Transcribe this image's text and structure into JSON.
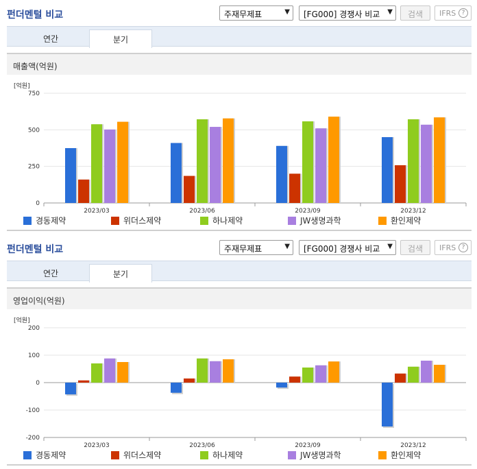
{
  "sections": [
    {
      "header": {
        "title": "펀더멘털 비교",
        "report_select": "주재무제표",
        "peer_select": "[FG000] 경쟁사 비교",
        "search_label": "검색",
        "ifrs_label": "IFRS",
        "help_glyph": "?"
      },
      "tabs": [
        {
          "label": "연간"
        },
        {
          "label": "분기"
        }
      ],
      "active_tab": 1,
      "panel_title": "매출액(억원)"
    },
    {
      "header": {
        "title": "펀더멘털 비교",
        "report_select": "주재무제표",
        "peer_select": "[FG000] 경쟁사 비교",
        "search_label": "검색",
        "ifrs_label": "IFRS",
        "help_glyph": "?"
      },
      "tabs": [
        {
          "label": "연간"
        },
        {
          "label": "분기"
        }
      ],
      "active_tab": 1,
      "panel_title": "영업이익(억원)"
    }
  ],
  "chart_data": [
    {
      "type": "bar",
      "title": "매출액(억원)",
      "unit_label": "[억원]",
      "categories": [
        "2023/03",
        "2023/06",
        "2023/09",
        "2023/12"
      ],
      "ylim": [
        0,
        750
      ],
      "yticks": [
        0,
        250,
        500,
        750
      ],
      "grid": true,
      "legend": "bottom",
      "series": [
        {
          "name": "경동제약",
          "color": "#2a6fd8",
          "values": [
            375,
            410,
            390,
            450
          ]
        },
        {
          "name": "위더스제약",
          "color": "#cc3300",
          "values": [
            160,
            185,
            200,
            258
          ]
        },
        {
          "name": "하나제약",
          "color": "#8fcc1f",
          "values": [
            538,
            572,
            558,
            572
          ]
        },
        {
          "name": "JW생명과학",
          "color": "#a87fe0",
          "values": [
            502,
            520,
            510,
            535
          ]
        },
        {
          "name": "환인제약",
          "color": "#ff9900",
          "values": [
            555,
            578,
            590,
            585
          ]
        }
      ]
    },
    {
      "type": "bar",
      "title": "영업이익(억원)",
      "unit_label": "[억원]",
      "categories": [
        "2023/03",
        "2023/06",
        "2023/09",
        "2023/12"
      ],
      "ylim": [
        -200,
        200
      ],
      "yticks": [
        -200,
        -100,
        0,
        100,
        200
      ],
      "grid": true,
      "legend": "bottom",
      "series": [
        {
          "name": "경동제약",
          "color": "#2a6fd8",
          "values": [
            -43,
            -37,
            -18,
            -160
          ]
        },
        {
          "name": "위더스제약",
          "color": "#cc3300",
          "values": [
            8,
            15,
            22,
            33
          ]
        },
        {
          "name": "하나제약",
          "color": "#8fcc1f",
          "values": [
            70,
            88,
            55,
            58
          ]
        },
        {
          "name": "JW생명과학",
          "color": "#a87fe0",
          "values": [
            88,
            78,
            63,
            80
          ]
        },
        {
          "name": "환인제약",
          "color": "#ff9900",
          "values": [
            75,
            85,
            77,
            65
          ]
        }
      ]
    }
  ]
}
